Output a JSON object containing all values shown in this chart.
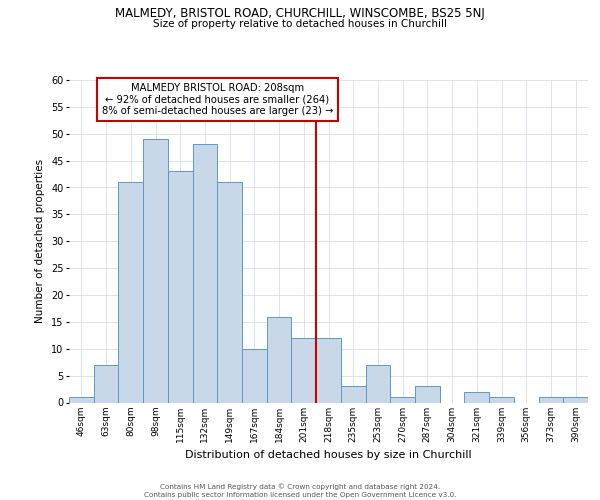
{
  "title": "MALMEDY, BRISTOL ROAD, CHURCHILL, WINSCOMBE, BS25 5NJ",
  "subtitle": "Size of property relative to detached houses in Churchill",
  "xlabel": "Distribution of detached houses by size in Churchill",
  "ylabel": "Number of detached properties",
  "bin_labels": [
    "46sqm",
    "63sqm",
    "80sqm",
    "98sqm",
    "115sqm",
    "132sqm",
    "149sqm",
    "167sqm",
    "184sqm",
    "201sqm",
    "218sqm",
    "235sqm",
    "253sqm",
    "270sqm",
    "287sqm",
    "304sqm",
    "321sqm",
    "339sqm",
    "356sqm",
    "373sqm",
    "390sqm"
  ],
  "bar_heights": [
    1,
    7,
    41,
    49,
    43,
    48,
    41,
    10,
    16,
    12,
    12,
    3,
    7,
    1,
    3,
    0,
    2,
    1,
    0,
    1,
    1
  ],
  "bar_color": "#c8d8e8",
  "bar_edge_color": "#5a9ac8",
  "property_line_x": 9.5,
  "annotation_title": "MALMEDY BRISTOL ROAD: 208sqm",
  "annotation_line1": "← 92% of detached houses are smaller (264)",
  "annotation_line2": "8% of semi-detached houses are larger (23) →",
  "annotation_box_color": "#cc0000",
  "annotation_fill_color": "#ffffff",
  "vline_color": "#cc0000",
  "ylim": [
    0,
    60
  ],
  "yticks": [
    0,
    5,
    10,
    15,
    20,
    25,
    30,
    35,
    40,
    45,
    50,
    55,
    60
  ],
  "footer_line1": "Contains HM Land Registry data © Crown copyright and database right 2024.",
  "footer_line2": "Contains public sector information licensed under the Open Government Licence v3.0.",
  "bg_color": "#ffffff",
  "grid_color": "#d0d8e8"
}
